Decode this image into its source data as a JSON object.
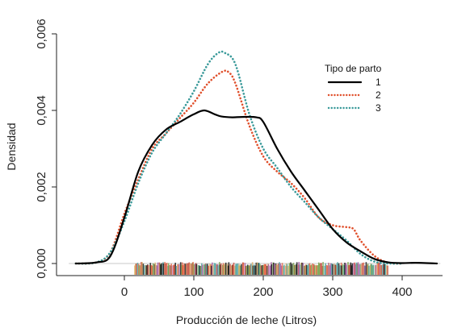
{
  "chart_data": {
    "type": "line",
    "xlabel": "Producción de leche (Litros)",
    "ylabel": "Densidad",
    "xlim": [
      -85,
      460
    ],
    "ylim": [
      -0.0005,
      0.0062
    ],
    "x_ticks": [
      {
        "value": 0,
        "label": "0"
      },
      {
        "value": 100,
        "label": "100"
      },
      {
        "value": 200,
        "label": "200"
      },
      {
        "value": 300,
        "label": "300"
      },
      {
        "value": 400,
        "label": "400"
      }
    ],
    "y_ticks": [
      {
        "value": 0,
        "label": "0,000"
      },
      {
        "value": 0.002,
        "label": "0,002"
      },
      {
        "value": 0.004,
        "label": "0,004"
      },
      {
        "value": 0.006,
        "label": "0,006"
      }
    ],
    "legend": {
      "title": "Tipo de parto",
      "position": "top-right"
    },
    "series": [
      {
        "name": "1",
        "color": "#000000",
        "style": "solid",
        "x": [
          -70,
          -40,
          -20,
          0,
          20,
          40,
          60,
          80,
          100,
          115,
          130,
          140,
          155,
          170,
          190,
          200,
          220,
          240,
          260,
          280,
          300,
          320,
          340,
          360,
          380,
          400,
          420,
          450
        ],
        "y": [
          0.0,
          3e-05,
          0.0002,
          0.0012,
          0.0024,
          0.0031,
          0.0035,
          0.0037,
          0.0039,
          0.004,
          0.0039,
          0.00384,
          0.00382,
          0.00383,
          0.00382,
          0.0037,
          0.003,
          0.0024,
          0.0019,
          0.0014,
          0.0009,
          0.00055,
          0.00032,
          0.00012,
          3e-05,
          1e-05,
          2e-05,
          0.0
        ]
      },
      {
        "name": "2",
        "color": "#e0502c",
        "style": "dotted",
        "x": [
          -70,
          -40,
          -20,
          0,
          20,
          40,
          60,
          80,
          100,
          120,
          140,
          150,
          160,
          180,
          200,
          220,
          240,
          260,
          280,
          300,
          320,
          330,
          340,
          360,
          380,
          400
        ],
        "y": [
          0.0,
          3e-05,
          0.0003,
          0.0013,
          0.0022,
          0.003,
          0.0034,
          0.0038,
          0.0042,
          0.0047,
          0.005,
          0.005,
          0.0047,
          0.0036,
          0.0028,
          0.0024,
          0.0021,
          0.0017,
          0.0012,
          0.001,
          0.00095,
          0.0009,
          0.0006,
          0.0002,
          2e-05,
          0.0
        ]
      },
      {
        "name": "3",
        "color": "#3a9a9a",
        "style": "dotted",
        "x": [
          -70,
          -40,
          -20,
          0,
          20,
          40,
          60,
          80,
          100,
          120,
          135,
          145,
          160,
          180,
          200,
          220,
          240,
          260,
          280,
          300,
          320,
          340,
          360,
          380,
          400
        ],
        "y": [
          0.0,
          3e-05,
          0.0003,
          0.0011,
          0.0021,
          0.0029,
          0.0034,
          0.0039,
          0.0045,
          0.0052,
          0.0055,
          0.0055,
          0.0052,
          0.0039,
          0.003,
          0.0025,
          0.002,
          0.0016,
          0.0012,
          0.0009,
          0.0006,
          0.00025,
          5e-05,
          0.0,
          0.0
        ]
      }
    ],
    "rug": {
      "range": [
        15,
        380
      ],
      "colors": [
        "#e0502c",
        "#3a9a9a",
        "#000000",
        "#d7a85a",
        "#6a9a3a",
        "#9a4a9a",
        "#c0392b"
      ]
    }
  }
}
